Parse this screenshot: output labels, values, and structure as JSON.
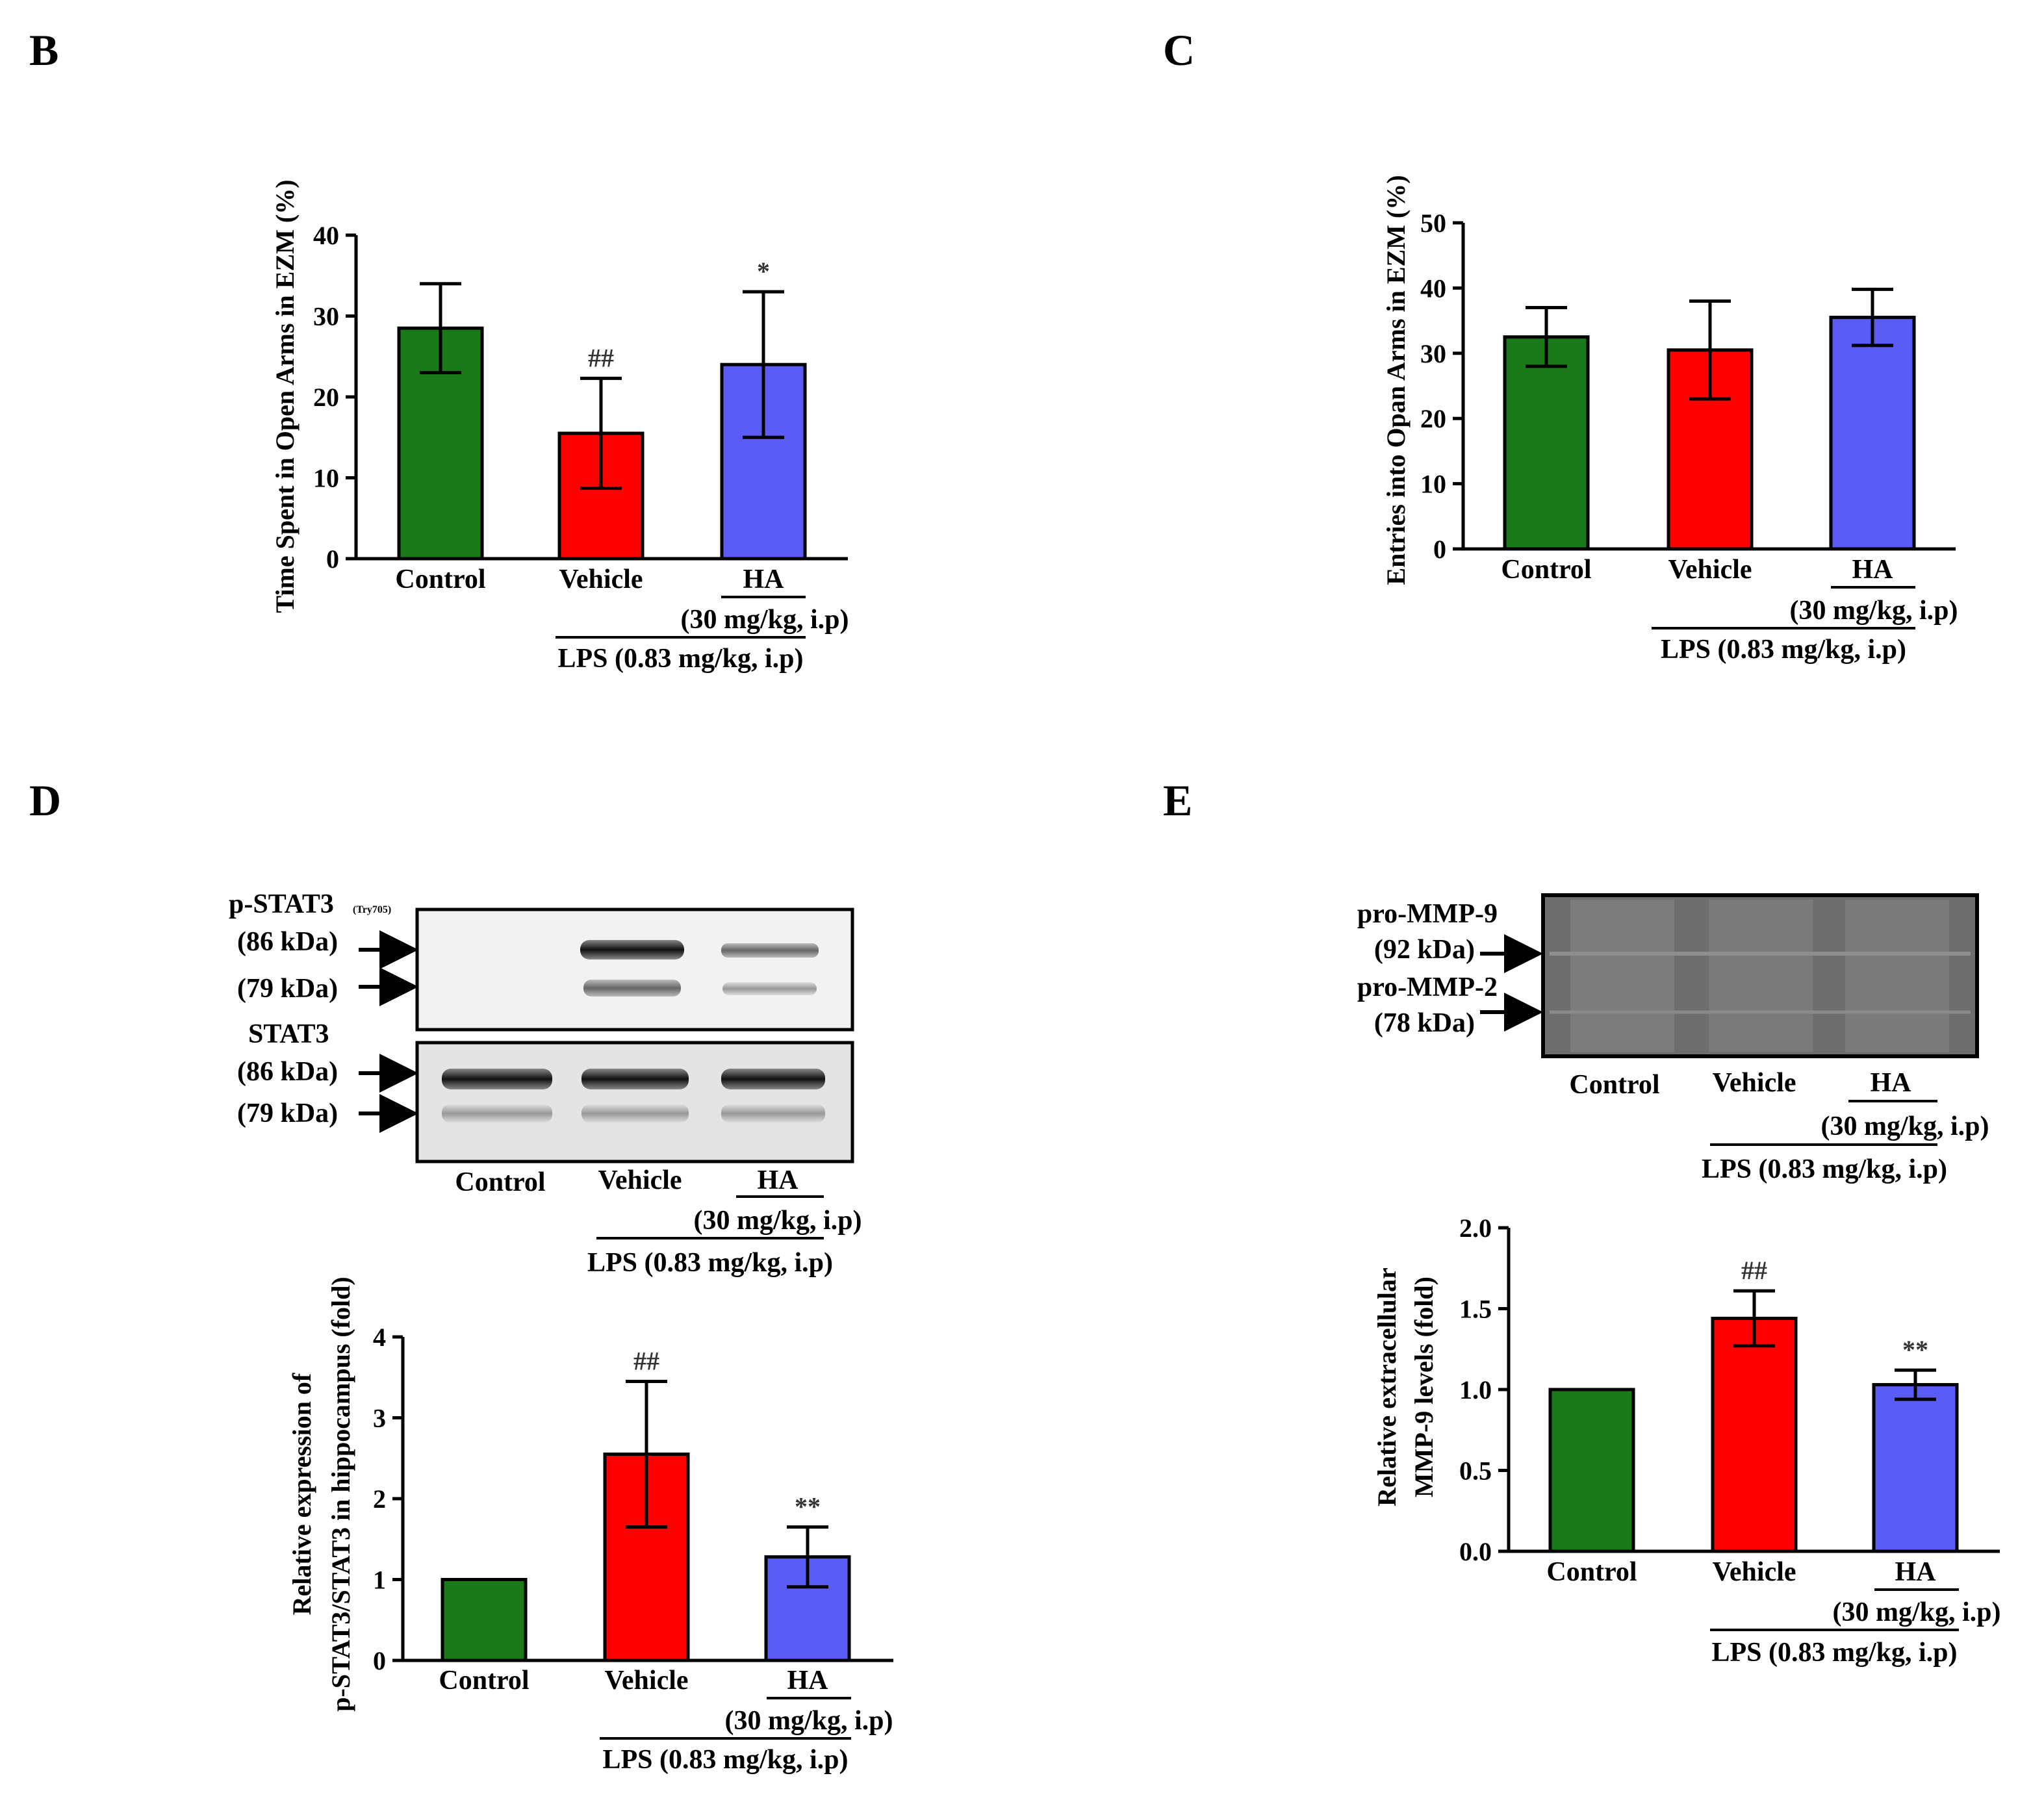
{
  "panels": {
    "B": "B",
    "C": "C",
    "D": "D",
    "E": "E"
  },
  "groups": {
    "control": "Control",
    "vehicle": "Vehicle",
    "ha": "HA",
    "ha_dose": "(30 mg/kg, i.p)",
    "lps": "LPS (0.83 mg/kg, i.p)"
  },
  "colors": {
    "control": "#1a7a1a",
    "vehicle": "#ff0000",
    "ha": "#5b5bf5"
  },
  "blot_D": {
    "label1": "p-STAT3",
    "label1_sub": "(Try705)",
    "kda86": "(86 kDa)",
    "kda79": "(79 kDa)",
    "label2": "STAT3",
    "kda86b": "(86 kDa)",
    "kda79b": "(79 kDa)"
  },
  "blot_E": {
    "label1": "pro-MMP-9",
    "kda92": "(92 kDa)",
    "label2": "pro-MMP-2",
    "kda78": "(78 kDa)"
  },
  "chart_data": [
    {
      "id": "B",
      "type": "bar",
      "categories": [
        "Control",
        "Vehicle",
        "HA"
      ],
      "values": [
        28.5,
        15.5,
        24.0
      ],
      "errors": [
        5.5,
        6.8,
        9.0
      ],
      "significance": [
        "",
        "##",
        "*"
      ],
      "ylabel": "Time Spent in Open Arms in EZM (%)",
      "ylim": [
        0,
        40
      ],
      "yticks": [
        "0",
        "10",
        "20",
        "30",
        "40"
      ]
    },
    {
      "id": "C",
      "type": "bar",
      "categories": [
        "Control",
        "Vehicle",
        "HA"
      ],
      "values": [
        32.5,
        30.5,
        35.5
      ],
      "errors": [
        4.5,
        7.5,
        4.3
      ],
      "significance": [
        "",
        "",
        ""
      ],
      "ylabel": "Entries into Opan Arms in EZM (%)",
      "ylim": [
        0,
        50
      ],
      "yticks": [
        "0",
        "10",
        "20",
        "30",
        "40",
        "50"
      ]
    },
    {
      "id": "D",
      "type": "bar",
      "categories": [
        "Control",
        "Vehicle",
        "HA"
      ],
      "values": [
        1.0,
        2.55,
        1.28
      ],
      "errors": [
        0,
        0.9,
        0.37
      ],
      "significance": [
        "",
        "##",
        "**"
      ],
      "ylabel_line1": "Relative expression of",
      "ylabel_line2": "p-STAT3/STAT3 in hippocampus (fold)",
      "ylim": [
        0,
        4
      ],
      "yticks": [
        "0",
        "1",
        "2",
        "3",
        "4"
      ]
    },
    {
      "id": "E",
      "type": "bar",
      "categories": [
        "Control",
        "Vehicle",
        "HA"
      ],
      "values": [
        1.0,
        1.44,
        1.03
      ],
      "errors": [
        0,
        0.17,
        0.09
      ],
      "significance": [
        "",
        "##",
        "**"
      ],
      "ylabel_line1": "Relative extracellular",
      "ylabel_line2": "MMP-9 levels (fold)",
      "ylim": [
        0,
        2.0
      ],
      "yticks": [
        "0.0",
        "0.5",
        "1.0",
        "1.5",
        "2.0"
      ]
    }
  ]
}
